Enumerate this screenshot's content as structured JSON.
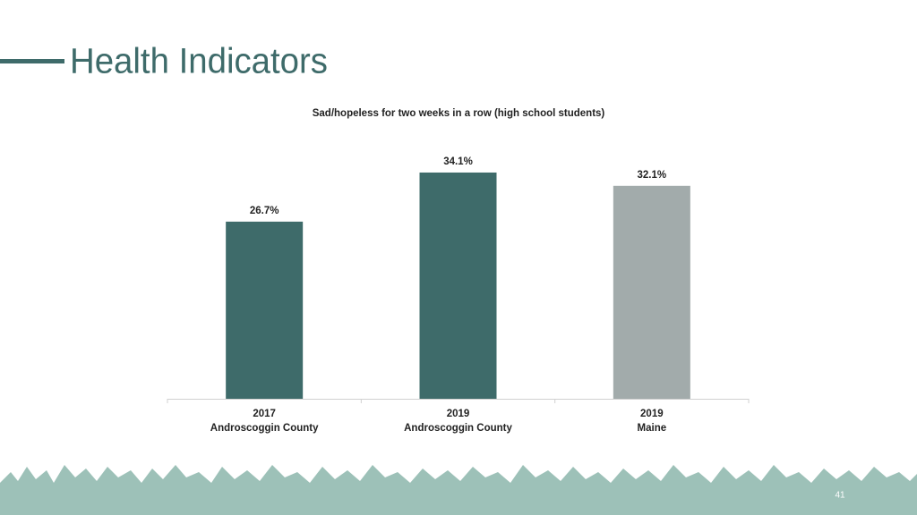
{
  "page": {
    "title": "Health Indicators",
    "page_number": 41
  },
  "chart_data": {
    "type": "bar",
    "title": "Sad/hopeless for two weeks in a row (high school students)",
    "categories": [
      [
        "2017",
        "Androscoggin County"
      ],
      [
        "2019",
        "Androscoggin County"
      ],
      [
        "2019",
        "Maine"
      ]
    ],
    "values": [
      26.7,
      34.1,
      32.1
    ],
    "value_labels": [
      "26.7%",
      "34.1%",
      "32.1%"
    ],
    "colors": [
      "#3e6b6a",
      "#3e6b6a",
      "#a2abab"
    ]
  }
}
